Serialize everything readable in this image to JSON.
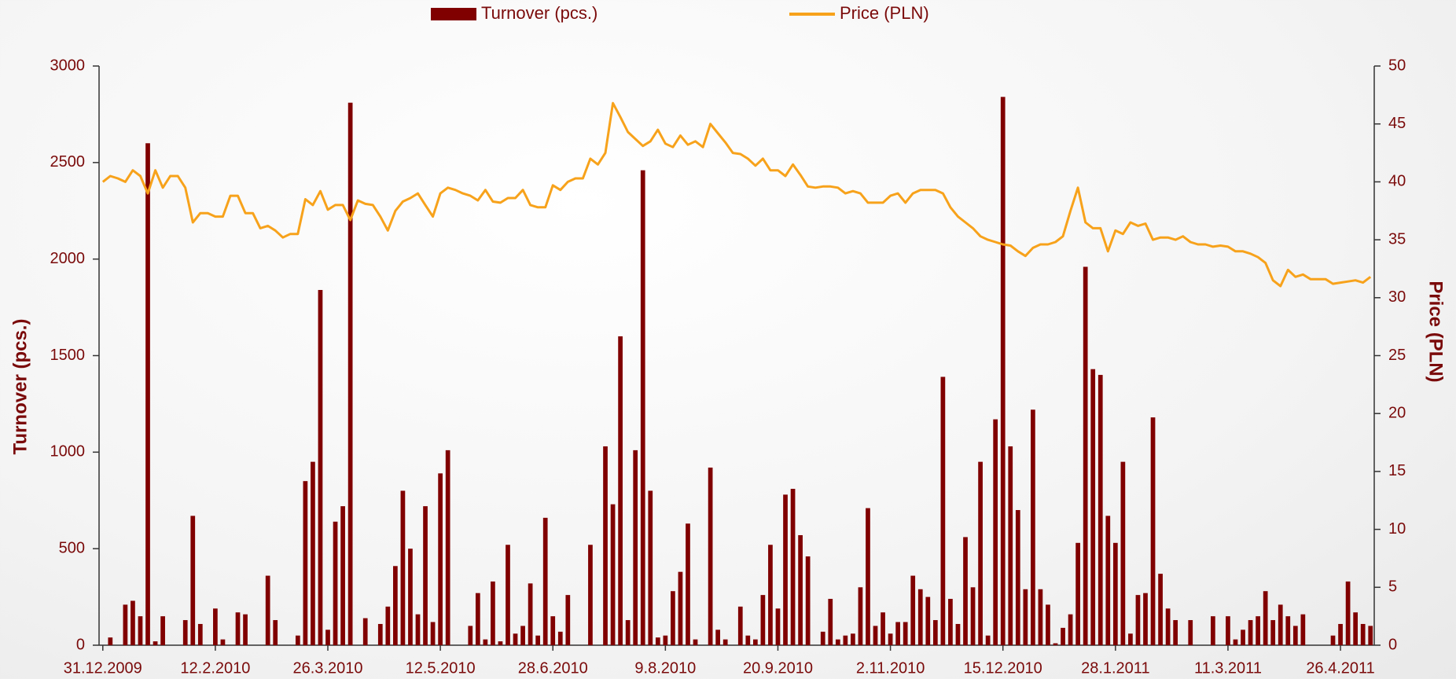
{
  "chart_data": {
    "type": "bar_line",
    "categories": [
      "31.12.2009",
      null,
      null,
      null,
      null,
      null,
      null,
      null,
      null,
      null,
      null,
      null,
      null,
      null,
      null,
      "12.2.2010",
      null,
      null,
      null,
      null,
      null,
      null,
      null,
      null,
      null,
      null,
      null,
      null,
      null,
      null,
      "26.3.2010",
      null,
      null,
      null,
      null,
      null,
      null,
      null,
      null,
      null,
      null,
      null,
      null,
      null,
      null,
      "12.5.2010",
      null,
      null,
      null,
      null,
      null,
      null,
      null,
      null,
      null,
      null,
      null,
      null,
      null,
      null,
      "28.6.2010",
      null,
      null,
      null,
      null,
      null,
      null,
      null,
      null,
      null,
      null,
      null,
      null,
      null,
      null,
      "9.8.2010",
      null,
      null,
      null,
      null,
      null,
      null,
      null,
      null,
      null,
      null,
      null,
      null,
      null,
      null,
      "20.9.2010",
      null,
      null,
      null,
      null,
      null,
      null,
      null,
      null,
      null,
      null,
      null,
      null,
      null,
      null,
      "2.11.2010",
      null,
      null,
      null,
      null,
      null,
      null,
      null,
      null,
      null,
      null,
      null,
      null,
      null,
      null,
      "15.12.2010",
      null,
      null,
      null,
      null,
      null,
      null,
      null,
      null,
      null,
      null,
      null,
      null,
      null,
      null,
      "28.1.2011",
      null,
      null,
      null,
      null,
      null,
      null,
      null,
      null,
      null,
      null,
      null,
      null,
      null,
      null,
      "11.3.2011",
      null,
      null,
      null,
      null,
      null,
      null,
      null,
      null,
      null,
      null,
      null,
      null,
      null,
      null,
      "26.4.2011",
      null,
      null,
      null,
      null
    ],
    "series": [
      {
        "name": "Turnover (pcs.)",
        "type": "bar",
        "axis": "y",
        "color": "#800000",
        "values": [
          0,
          40,
          0,
          210,
          230,
          150,
          2600,
          20,
          150,
          0,
          0,
          130,
          670,
          110,
          0,
          190,
          30,
          0,
          170,
          160,
          0,
          0,
          360,
          130,
          0,
          0,
          50,
          850,
          950,
          1840,
          80,
          640,
          720,
          2810,
          0,
          140,
          0,
          110,
          200,
          410,
          800,
          500,
          160,
          720,
          120,
          890,
          1010,
          0,
          0,
          100,
          270,
          30,
          330,
          20,
          520,
          60,
          100,
          320,
          50,
          660,
          150,
          70,
          260,
          0,
          0,
          520,
          0,
          1030,
          730,
          1600,
          130,
          1010,
          2460,
          800,
          40,
          50,
          280,
          380,
          630,
          30,
          0,
          920,
          80,
          30,
          0,
          200,
          50,
          30,
          260,
          520,
          190,
          780,
          810,
          570,
          460,
          0,
          70,
          240,
          30,
          50,
          60,
          300,
          710,
          100,
          170,
          60,
          120,
          120,
          360,
          290,
          250,
          130,
          1390,
          240,
          110,
          560,
          300,
          950,
          50,
          1170,
          2840,
          1030,
          700,
          290,
          1220,
          290,
          210,
          10,
          90,
          160,
          530,
          1960,
          1430,
          1400,
          670,
          530,
          950,
          60,
          260,
          270,
          1180,
          370,
          190,
          130,
          0,
          130,
          0,
          0,
          150,
          0,
          150,
          30,
          80,
          130,
          150,
          280,
          130,
          210,
          150,
          100,
          160,
          0,
          0,
          0,
          50,
          110,
          330,
          170,
          110,
          100
        ]
      },
      {
        "name": "Price (PLN)",
        "type": "line",
        "axis": "y2",
        "color": "#f7a21b",
        "values": [
          40,
          40.5,
          40.3,
          40,
          41,
          40.5,
          39,
          41,
          39.5,
          40.5,
          40.5,
          39.5,
          36.5,
          37.3,
          37.3,
          37,
          37,
          38.8,
          38.8,
          37.3,
          37.3,
          36,
          36.2,
          35.8,
          35.2,
          35.5,
          35.5,
          38.5,
          38,
          39.2,
          37.6,
          38,
          38,
          36.7,
          38.4,
          38.1,
          38,
          37,
          35.8,
          37.5,
          38.3,
          38.6,
          39,
          38,
          37,
          39,
          39.5,
          39.3,
          39,
          38.8,
          38.4,
          39.3,
          38.3,
          38.2,
          38.6,
          38.6,
          39.3,
          38,
          37.8,
          37.8,
          39.7,
          39.3,
          40,
          40.3,
          40.3,
          42,
          41.5,
          42.5,
          46.8,
          45.6,
          44.3,
          43.7,
          43.1,
          43.5,
          44.5,
          43.3,
          43,
          44,
          43.2,
          43.5,
          43,
          45,
          44.2,
          43.4,
          42.5,
          42.4,
          42,
          41.4,
          42,
          41,
          41,
          40.5,
          41.5,
          40.6,
          39.6,
          39.5,
          39.6,
          39.6,
          39.5,
          39,
          39.2,
          39,
          38.2,
          38.2,
          38.2,
          38.8,
          39,
          38.2,
          39,
          39.3,
          39.3,
          39.3,
          39,
          37.8,
          37,
          36.5,
          36,
          35.3,
          35,
          34.8,
          34.6,
          34.5,
          34,
          33.6,
          34.3,
          34.6,
          34.6,
          34.8,
          35.3,
          37.5,
          39.5,
          36.5,
          36,
          36,
          34,
          35.8,
          35.5,
          36.5,
          36.2,
          36.4,
          35,
          35.2,
          35.2,
          35,
          35.3,
          34.8,
          34.6,
          34.6,
          34.4,
          34.5,
          34.4,
          34,
          34,
          33.8,
          33.5,
          33,
          31.5,
          31,
          32.4,
          31.8,
          32,
          31.6,
          31.6,
          31.6,
          31.2,
          31.3,
          31.4,
          31.5,
          31.3,
          31.8
        ]
      }
    ],
    "ylabel": "Turnover (pcs.)",
    "y2label": "Price (PLN)",
    "ylim": [
      0,
      3000
    ],
    "yticks": [
      0,
      500,
      1000,
      1500,
      2000,
      2500,
      3000
    ],
    "y2lim": [
      0,
      50
    ],
    "y2ticks": [
      0,
      5,
      10,
      15,
      20,
      25,
      30,
      35,
      40,
      45,
      50
    ],
    "legend": "top"
  }
}
